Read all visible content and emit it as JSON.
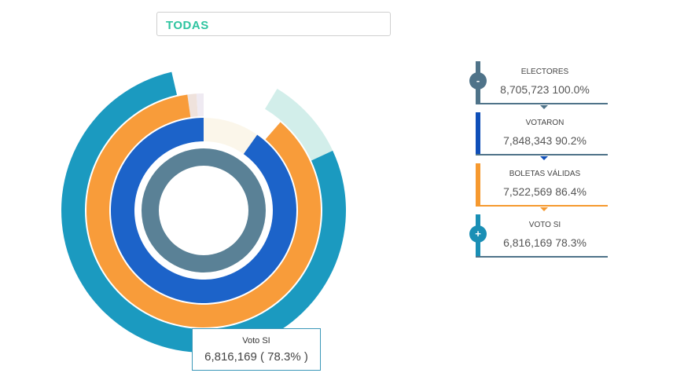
{
  "filter": {
    "label": "TODAS"
  },
  "tooltip": {
    "title": "Voto SI",
    "value": "6,816,169 ( 78.3% )"
  },
  "legend": [
    {
      "label": "ELECTORES",
      "value": "8,705,723 100.0%",
      "color": "#4f7389",
      "icon": "-"
    },
    {
      "label": "VOTARON",
      "value": "7,848,343  90.2%",
      "color": "#0f4fb8"
    },
    {
      "label": "BOLETAS VÁLIDAS",
      "value": "7,522,569  86.4%",
      "color": "#f6992f"
    },
    {
      "label": "VOTO SI",
      "value": "6,816,169  78.3%",
      "color": "#1a8fb5",
      "icon": "+"
    }
  ],
  "chart_data": {
    "type": "pie",
    "title": "",
    "rings": [
      {
        "name": "Electores",
        "value": 8705723,
        "percent": 100.0,
        "color": "#5a8196",
        "rest_color": "#ffffff"
      },
      {
        "name": "Votaron",
        "value": 7848343,
        "percent": 90.2,
        "color": "#1c63c9",
        "rest_color": "#fbf6ea"
      },
      {
        "name": "Boletas válidas",
        "value": 7522569,
        "percent": 86.4,
        "color": "#f89c3a",
        "rest_color": "#efe2dc"
      },
      {
        "name": "Voto SI",
        "value": 6816169,
        "percent": 78.3,
        "color": "#1b9ac0",
        "rest_color": "#d2eeea"
      }
    ]
  }
}
